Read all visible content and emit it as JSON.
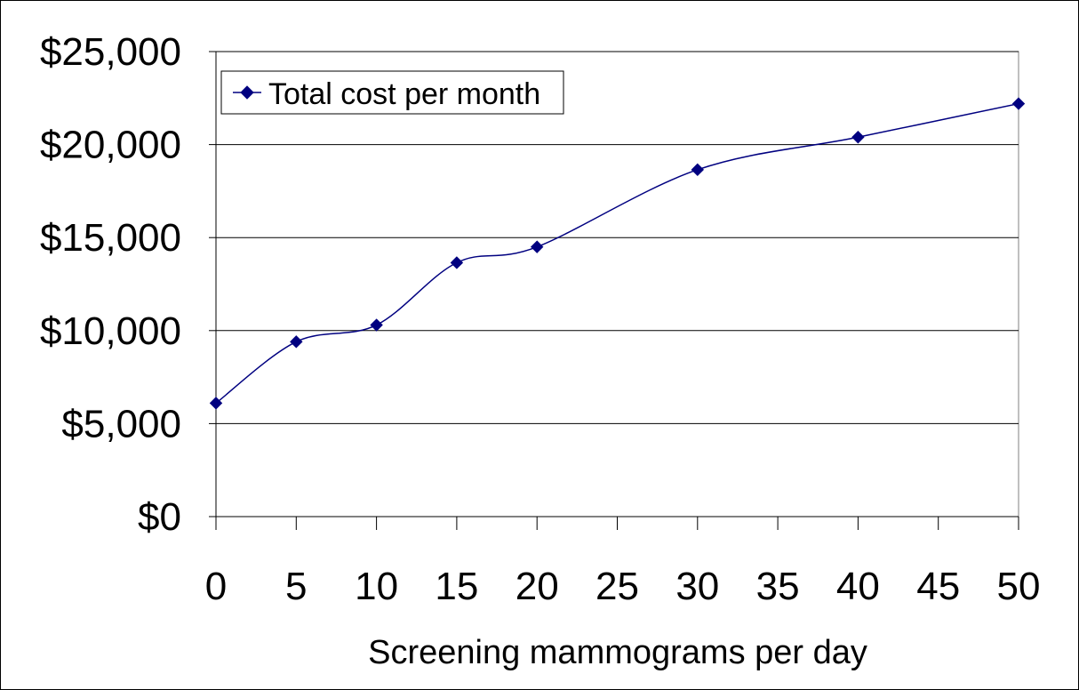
{
  "chart_data": {
    "type": "line",
    "title": "",
    "xlabel": "Screening mammograms per day",
    "ylabel": "",
    "xlim": [
      0,
      50
    ],
    "ylim": [
      0,
      25000
    ],
    "x_ticks": [
      0,
      5,
      10,
      15,
      20,
      25,
      30,
      35,
      40,
      45,
      50
    ],
    "x_tick_labels": [
      "0",
      "5",
      "10",
      "15",
      "20",
      "25",
      "30",
      "35",
      "40",
      "45",
      "50"
    ],
    "y_ticks": [
      0,
      5000,
      10000,
      15000,
      20000,
      25000
    ],
    "y_tick_labels": [
      "$0",
      "$5,000",
      "$10,000",
      "$15,000",
      "$20,000",
      "$25,000"
    ],
    "grid": true,
    "legend_position": "top-left",
    "series": [
      {
        "name": "Total cost per month",
        "color": "#000080",
        "marker": "diamond",
        "smooth": true,
        "x": [
          0,
          5,
          10,
          15,
          20,
          30,
          40,
          50
        ],
        "values": [
          6100,
          9400,
          10300,
          13650,
          14500,
          18650,
          20400,
          22200
        ]
      }
    ]
  }
}
